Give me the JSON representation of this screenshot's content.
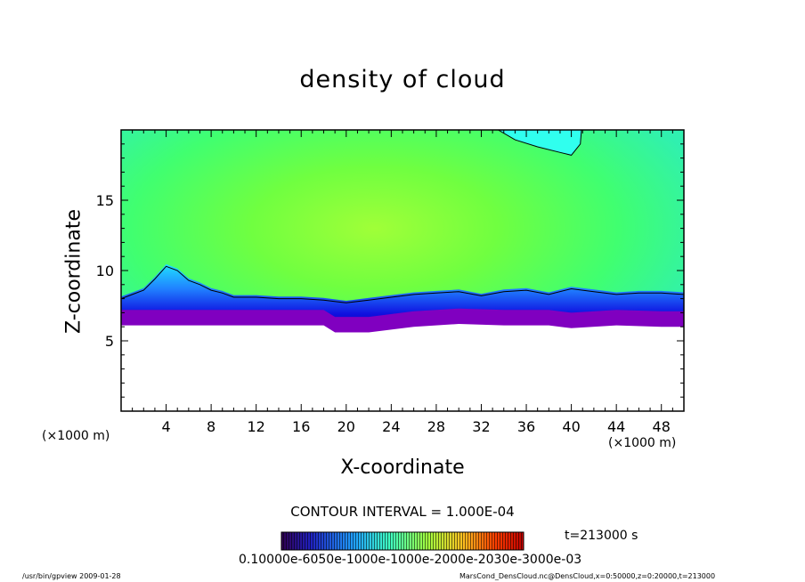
{
  "chart_data": {
    "type": "heatmap",
    "title": "density of cloud",
    "xlabel": "X-coordinate",
    "ylabel": "Z-coordinate",
    "x_unit": "(×1000 m)",
    "z_unit": "(×1000 m)",
    "xlim": [
      0,
      50
    ],
    "ylim": [
      0,
      20
    ],
    "x_ticks": [
      4,
      8,
      12,
      16,
      20,
      24,
      28,
      32,
      36,
      40,
      44,
      48
    ],
    "y_ticks": [
      5,
      10,
      15
    ],
    "contour_interval": "CONTOUR INTERVAL = 1.000E-04",
    "time": "t=213000 s",
    "colorbar_label_text": "0.10000e-6050e-1000e-1000e-2000e-2030e-3000e-03",
    "cloud_base_km": [
      [
        0,
        6.1
      ],
      [
        4,
        6.1
      ],
      [
        8,
        6.1
      ],
      [
        12,
        6.1
      ],
      [
        16,
        6.1
      ],
      [
        18,
        6.1
      ],
      [
        19,
        5.6
      ],
      [
        22,
        5.6
      ],
      [
        26,
        6.0
      ],
      [
        30,
        6.2
      ],
      [
        34,
        6.1
      ],
      [
        38,
        6.1
      ],
      [
        40,
        5.9
      ],
      [
        44,
        6.1
      ],
      [
        48,
        6.0
      ],
      [
        50,
        6.0
      ]
    ],
    "contour_line_km": [
      [
        0,
        8.0
      ],
      [
        1,
        8.3
      ],
      [
        2,
        8.6
      ],
      [
        3,
        9.4
      ],
      [
        4,
        10.3
      ],
      [
        5,
        10.0
      ],
      [
        6,
        9.3
      ],
      [
        7,
        9.0
      ],
      [
        8,
        8.6
      ],
      [
        9,
        8.4
      ],
      [
        10,
        8.1
      ],
      [
        12,
        8.1
      ],
      [
        14,
        8.0
      ],
      [
        16,
        8.0
      ],
      [
        18,
        7.9
      ],
      [
        20,
        7.7
      ],
      [
        22,
        7.9
      ],
      [
        24,
        8.1
      ],
      [
        26,
        8.3
      ],
      [
        28,
        8.4
      ],
      [
        30,
        8.5
      ],
      [
        32,
        8.2
      ],
      [
        34,
        8.5
      ],
      [
        36,
        8.6
      ],
      [
        38,
        8.3
      ],
      [
        40,
        8.7
      ],
      [
        42,
        8.5
      ],
      [
        44,
        8.3
      ],
      [
        46,
        8.4
      ],
      [
        48,
        8.4
      ],
      [
        50,
        8.3
      ]
    ],
    "top_contour_km": [
      [
        33.5,
        20
      ],
      [
        35,
        19.3
      ],
      [
        37,
        18.8
      ],
      [
        39,
        18.4
      ],
      [
        40,
        18.2
      ],
      [
        40.8,
        19
      ],
      [
        40.9,
        20
      ]
    ],
    "colors": {
      "cloud_core": "#80ff40",
      "cloud_mid": "#40ff80",
      "cloud_edge": "#20f0e0",
      "cyan": "#20ffff",
      "blue": "#2030ff",
      "dark_blue": "#0000c8",
      "purple": "#8000c0",
      "contour": "#000000"
    }
  },
  "footer": {
    "left": "/usr/bin/gpview   2009-01-28",
    "right": "MarsCond_DensCloud.nc@DensCloud,x=0:50000,z=0:20000,t=213000"
  }
}
